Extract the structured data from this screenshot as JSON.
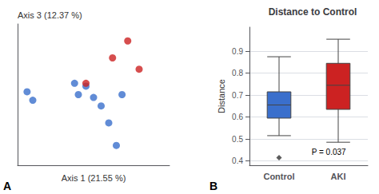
{
  "chart_data": [
    {
      "type": "scatter",
      "xlabel": "Axis 1 (21.55 %)",
      "ylabel": "Axis 3 (12.37 %)",
      "panel_label": "A",
      "xlim": [
        0.0,
        0.8
      ],
      "ylim": [
        0.0,
        1.0
      ],
      "tick_labels": false,
      "grid": false,
      "series": [
        {
          "color": "#3a6fcc",
          "x": [
            0.05,
            0.08,
            0.3,
            0.32,
            0.36,
            0.4,
            0.44,
            0.48,
            0.52,
            0.55
          ],
          "y": [
            0.52,
            0.46,
            0.58,
            0.5,
            0.56,
            0.48,
            0.42,
            0.3,
            0.14,
            0.5
          ]
        },
        {
          "color": "#cc2222",
          "x": [
            0.36,
            0.5,
            0.64,
            0.58
          ],
          "y": [
            0.58,
            0.76,
            0.68,
            0.88
          ]
        }
      ]
    },
    {
      "type": "box",
      "title": "Distance to Control",
      "ylabel": "Distance",
      "panel_label": "B",
      "categories": [
        "Control",
        "AKI"
      ],
      "series": [
        {
          "type": "box",
          "colors": [
            "#3a6fcc",
            "#cc2222"
          ],
          "whisker_low": [
            0.515,
            0.485
          ],
          "q1": [
            0.595,
            0.635
          ],
          "median": [
            0.655,
            0.745
          ],
          "q3": [
            0.715,
            0.845
          ],
          "whisker_high": [
            0.875,
            0.955
          ]
        },
        {
          "type": "scatter",
          "marker": "diamond",
          "color": "#333333",
          "values": [
            0.415,
            null
          ]
        }
      ],
      "ylim": [
        0.38,
        1.01
      ],
      "yticks": [
        0.4,
        0.5,
        0.6,
        0.7,
        0.8,
        0.9
      ],
      "grid": true,
      "annotations": [
        {
          "text": "P = 0.037"
        }
      ]
    }
  ]
}
